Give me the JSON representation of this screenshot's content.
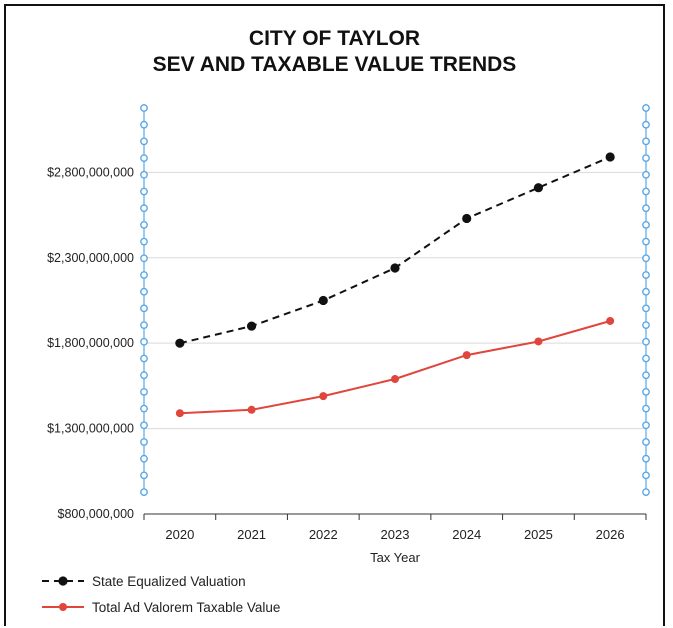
{
  "chart_data": {
    "type": "line",
    "title_lines": [
      "CITY OF TAYLOR",
      "SEV AND TAXABLE VALUE TRENDS"
    ],
    "xlabel": "Tax Year",
    "ylabel": "",
    "categories": [
      "2020",
      "2021",
      "2022",
      "2023",
      "2024",
      "2025",
      "2026"
    ],
    "ylim": [
      800000000,
      3200000000
    ],
    "yticks": [
      800000000,
      1300000000,
      1800000000,
      2300000000,
      2800000000
    ],
    "ytick_labels": [
      "$800,000,000",
      "$1,300,000,000",
      "$1,800,000,000",
      "$2,300,000,000",
      "$2,800,000,000"
    ],
    "grid": true,
    "legend_position": "bottom-left",
    "series": [
      {
        "name": "State Equalized Valuation",
        "values": [
          1800000000,
          1900000000,
          2050000000,
          2240000000,
          2530000000,
          2710000000,
          2890000000
        ],
        "color": "#111111",
        "style": "dashed"
      },
      {
        "name": "Total Ad Valorem Taxable Value",
        "values": [
          1390000000,
          1410000000,
          1490000000,
          1590000000,
          1730000000,
          1810000000,
          1930000000
        ],
        "color": "#e0463c",
        "style": "solid"
      }
    ]
  }
}
